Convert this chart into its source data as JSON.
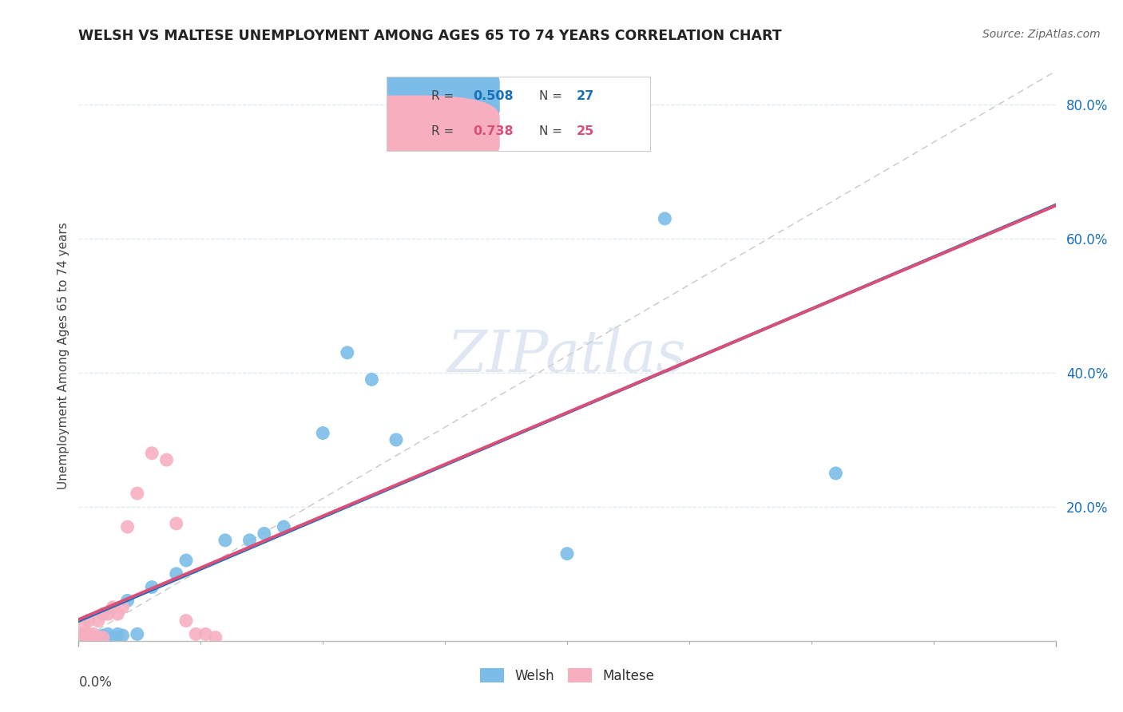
{
  "title": "WELSH VS MALTESE UNEMPLOYMENT AMONG AGES 65 TO 74 YEARS CORRELATION CHART",
  "source": "Source: ZipAtlas.com",
  "ylabel": "Unemployment Among Ages 65 to 74 years",
  "welsh_R": "0.508",
  "welsh_N": "27",
  "maltese_R": "0.738",
  "maltese_N": "25",
  "welsh_color": "#7bbde8",
  "maltese_color": "#f7afc0",
  "trend_welsh_color": "#1a6fba",
  "trend_maltese_color": "#d94f78",
  "ref_line_color": "#c8c8c8",
  "welsh_points_x": [
    0.001,
    0.001,
    0.002,
    0.002,
    0.003,
    0.004,
    0.005,
    0.006,
    0.007,
    0.008,
    0.009,
    0.01,
    0.012,
    0.015,
    0.02,
    0.022,
    0.03,
    0.035,
    0.038,
    0.042,
    0.05,
    0.055,
    0.06,
    0.065,
    0.1,
    0.12,
    0.155
  ],
  "welsh_points_y": [
    0.005,
    0.01,
    0.005,
    0.008,
    0.005,
    0.005,
    0.008,
    0.01,
    0.005,
    0.01,
    0.008,
    0.06,
    0.01,
    0.08,
    0.1,
    0.12,
    0.15,
    0.15,
    0.16,
    0.17,
    0.31,
    0.43,
    0.39,
    0.3,
    0.13,
    0.63,
    0.25
  ],
  "maltese_points_x": [
    0.001,
    0.001,
    0.001,
    0.002,
    0.002,
    0.002,
    0.003,
    0.003,
    0.004,
    0.004,
    0.005,
    0.005,
    0.006,
    0.007,
    0.008,
    0.009,
    0.01,
    0.012,
    0.015,
    0.018,
    0.02,
    0.022,
    0.024,
    0.026,
    0.028
  ],
  "maltese_points_y": [
    0.005,
    0.01,
    0.025,
    0.005,
    0.01,
    0.03,
    0.005,
    0.01,
    0.005,
    0.03,
    0.005,
    0.04,
    0.04,
    0.05,
    0.04,
    0.05,
    0.17,
    0.22,
    0.28,
    0.27,
    0.175,
    0.03,
    0.01,
    0.01,
    0.005
  ],
  "xlim": [
    0.0,
    0.2
  ],
  "ylim": [
    0.0,
    0.85
  ],
  "yticks": [
    0.0,
    0.2,
    0.4,
    0.6,
    0.8
  ],
  "ytick_labels": [
    "",
    "20.0%",
    "40.0%",
    "60.0%",
    "80.0%"
  ],
  "background_color": "#ffffff",
  "grid_color": "#dde8f0",
  "watermark_color": "#c5d5e8",
  "tick_color": "#1a6fba"
}
